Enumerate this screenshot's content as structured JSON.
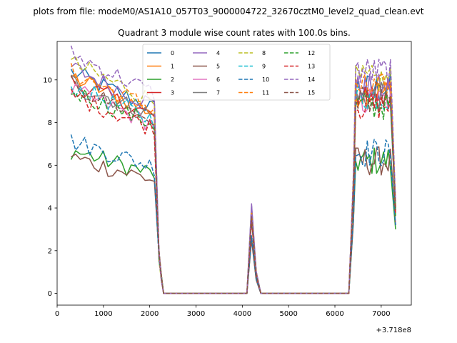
{
  "header": {
    "supertitle": "plots from file: modeM0/AS1A10_057T03_9000004722_32670cztM0_level2_quad_clean.evt"
  },
  "chart_data": {
    "type": "line",
    "title": "Quadrant 3 module wise count rates with 100.0s bins.",
    "xlabel": "",
    "ylabel": "",
    "x_offset_label": "+3.718e8",
    "xlim": [
      0,
      7650
    ],
    "ylim": [
      -0.55,
      11.8
    ],
    "x_ticks": [
      0,
      1000,
      2000,
      3000,
      4000,
      5000,
      6000,
      7000
    ],
    "x_tick_labels": [
      "0",
      "1000",
      "2000",
      "3000",
      "4000",
      "5000",
      "6000",
      "7000"
    ],
    "y_ticks": [
      0,
      2,
      4,
      6,
      8,
      10
    ],
    "y_tick_labels": [
      "0",
      "2",
      "4",
      "6",
      "8",
      "10"
    ],
    "legend_location": "upper-center",
    "series": [
      {
        "name": "0",
        "color": "#1f77b4",
        "dash": "solid",
        "level1": 9.6,
        "level2": 9.6,
        "peak": 4.1,
        "end": 4.0
      },
      {
        "name": "1",
        "color": "#ff7f0e",
        "dash": "solid",
        "level1": 9.4,
        "level2": 9.4,
        "peak": 3.6,
        "end": 4.0
      },
      {
        "name": "2",
        "color": "#2ca02c",
        "dash": "solid",
        "level1": 6.2,
        "level2": 6.2,
        "peak": 2.6,
        "end": 3.0
      },
      {
        "name": "3",
        "color": "#d62728",
        "dash": "solid",
        "level1": 9.2,
        "level2": 9.4,
        "peak": 3.7,
        "end": 4.0
      },
      {
        "name": "4",
        "color": "#9467bd",
        "dash": "solid",
        "level1": 9.8,
        "level2": 9.6,
        "peak": 4.2,
        "end": 4.3
      },
      {
        "name": "5",
        "color": "#8c564b",
        "dash": "solid",
        "level1": 5.9,
        "level2": 6.2,
        "peak": 2.5,
        "end": 3.2
      },
      {
        "name": "6",
        "color": "#e377c2",
        "dash": "solid",
        "level1": 8.8,
        "level2": 9.0,
        "peak": 3.5,
        "end": 3.8
      },
      {
        "name": "7",
        "color": "#7f7f7f",
        "dash": "solid",
        "level1": 9.2,
        "level2": 9.2,
        "peak": 3.5,
        "end": 3.9
      },
      {
        "name": "8",
        "color": "#bcbd22",
        "dash": "dashed",
        "level1": 10.0,
        "level2": 10.0,
        "peak": 3.9,
        "end": 4.2
      },
      {
        "name": "9",
        "color": "#17becf",
        "dash": "dashed",
        "level1": 9.0,
        "level2": 9.2,
        "peak": 3.6,
        "end": 3.8
      },
      {
        "name": "10",
        "color": "#1f77b4",
        "dash": "dashed",
        "level1": 6.6,
        "level2": 6.6,
        "peak": 2.7,
        "end": 3.2
      },
      {
        "name": "11",
        "color": "#ff7f0e",
        "dash": "dashed",
        "level1": 9.6,
        "level2": 9.6,
        "peak": 3.8,
        "end": 4.1
      },
      {
        "name": "12",
        "color": "#2ca02c",
        "dash": "dashed",
        "level1": 8.8,
        "level2": 8.8,
        "peak": 3.5,
        "end": 3.6
      },
      {
        "name": "13",
        "color": "#d62728",
        "dash": "dashed",
        "level1": 8.6,
        "level2": 8.8,
        "peak": 3.4,
        "end": 3.7
      },
      {
        "name": "14",
        "color": "#9467bd",
        "dash": "dashed",
        "level1": 10.4,
        "level2": 10.4,
        "peak": 4.0,
        "end": 4.3
      },
      {
        "name": "15",
        "color": "#8c564b",
        "dash": "dashed",
        "level1": 9.0,
        "level2": 9.2,
        "peak": 3.6,
        "end": 3.9
      }
    ],
    "segments": {
      "seg1_x": [
        300,
        2100
      ],
      "drop_x": [
        2200,
        2300
      ],
      "zero1_x": [
        2300,
        4100
      ],
      "peak_x": [
        4200,
        4300,
        4400
      ],
      "zero2_x": [
        4400,
        6300
      ],
      "rise_x": [
        6300,
        6400
      ],
      "seg2_x": [
        6450,
        7200
      ],
      "end_x": 7310,
      "bin": 100
    }
  }
}
